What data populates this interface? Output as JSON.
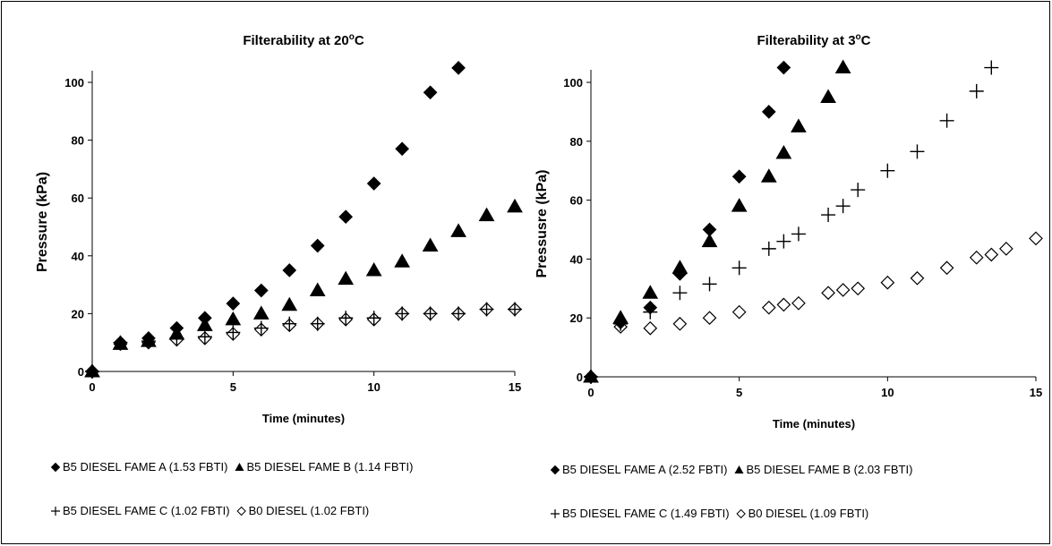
{
  "chart_data": [
    {
      "type": "scatter",
      "title": "Filterability at 20",
      "title_unit": "C",
      "xlabel": "Time  (minutes)",
      "ylabel": "Pressure  (kPa)",
      "xlim": [
        0,
        15
      ],
      "ylim": [
        0,
        110
      ],
      "xticks": [
        0,
        5,
        10,
        15
      ],
      "yticks": [
        0,
        20,
        40,
        60,
        80,
        100
      ],
      "grid": false,
      "legend_position": "bottom",
      "series": [
        {
          "name": "B5 DIESEL FAME A (1.53 FBTI)",
          "marker": "diamond-filled",
          "x": [
            0,
            1,
            2,
            3,
            4,
            5,
            6,
            7,
            8,
            9,
            10,
            11,
            12,
            13
          ],
          "y": [
            0,
            10,
            11.5,
            15,
            18.5,
            23.5,
            28,
            35,
            43.5,
            53.5,
            65,
            77,
            96.5,
            105
          ]
        },
        {
          "name": "B5 DIESEL FAME B (1.14 FBTI)",
          "marker": "triangle-filled",
          "x": [
            0,
            1,
            2,
            3,
            4,
            5,
            6,
            7,
            8,
            9,
            10,
            11,
            12,
            13,
            14,
            15
          ],
          "y": [
            0,
            9.5,
            10.5,
            13,
            16,
            18,
            20,
            23,
            28,
            32,
            35,
            38,
            43.5,
            48.5,
            54,
            57
          ]
        },
        {
          "name": "B5 DIESEL FAME C (1.02 FBTI)",
          "marker": "plus",
          "x": [
            0,
            1,
            2,
            3,
            4,
            5,
            6,
            7,
            8,
            9,
            10,
            11,
            12,
            13,
            14,
            15
          ],
          "y": [
            0,
            10,
            10.5,
            11.5,
            12,
            13.5,
            15,
            16.5,
            16.5,
            18.5,
            18.5,
            20,
            20,
            20,
            21.5,
            21.5
          ]
        },
        {
          "name": "B0 DIESEL (1.02 FBTI)",
          "marker": "diamond-open",
          "x": [
            0,
            1,
            2,
            3,
            4,
            5,
            6,
            7,
            8,
            9,
            10,
            11,
            12,
            13,
            14,
            15
          ],
          "y": [
            0,
            9.5,
            10,
            11,
            11.5,
            13,
            14.5,
            16,
            16.5,
            18,
            18,
            20,
            20,
            20,
            21.5,
            21.5
          ]
        }
      ],
      "legend_rows": [
        [
          0,
          1
        ],
        [
          2,
          3
        ]
      ]
    },
    {
      "type": "scatter",
      "title": "Filterability at 3",
      "title_unit": "C",
      "xlabel": "Time (minutes)",
      "ylabel": "Pressusre  (kPa)",
      "xlim": [
        0,
        15
      ],
      "ylim": [
        0,
        105
      ],
      "xticks": [
        0,
        5,
        10,
        15
      ],
      "yticks": [
        0,
        20,
        40,
        60,
        80,
        100
      ],
      "grid": false,
      "legend_position": "bottom",
      "series": [
        {
          "name": "B5 DIESEL FAME A (2.52 FBTI)",
          "marker": "diamond-filled",
          "x": [
            0,
            1,
            2,
            3,
            4,
            5,
            6,
            6.5
          ],
          "y": [
            0,
            18.5,
            23.5,
            35,
            50,
            68,
            90,
            105
          ]
        },
        {
          "name": "B5 DIESEL FAME B (2.03 FBTI)",
          "marker": "triangle-filled",
          "x": [
            0,
            1,
            2,
            3,
            4,
            5,
            6,
            6.5,
            7,
            8,
            8.5
          ],
          "y": [
            0,
            20,
            28.5,
            37,
            46,
            58,
            68,
            76,
            85,
            95,
            105
          ]
        },
        {
          "name": "B5 DIESEL FAME C (1.49 FBTI)",
          "marker": "plus",
          "x": [
            0,
            1,
            2,
            3,
            4,
            5,
            6,
            6.5,
            7,
            8,
            8.5,
            9,
            10,
            11,
            12,
            13,
            13.5
          ],
          "y": [
            0,
            18,
            22,
            28.5,
            31.5,
            37,
            43.5,
            46,
            48.5,
            55,
            58,
            63.5,
            70,
            76.5,
            87,
            97,
            105
          ]
        },
        {
          "name": "B0 DIESEL (1.09 FBTI)",
          "marker": "diamond-open",
          "x": [
            0,
            1,
            2,
            3,
            4,
            5,
            6,
            6.5,
            7,
            8,
            8.5,
            9,
            10,
            11,
            12,
            13,
            13.5,
            14,
            15
          ],
          "y": [
            0,
            17,
            16.5,
            18,
            20,
            22,
            23.5,
            24.5,
            25,
            28.5,
            29.5,
            30,
            32,
            33.5,
            37,
            40.5,
            41.5,
            43.5,
            47
          ]
        }
      ],
      "legend_rows": [
        [
          0,
          1
        ],
        [
          2,
          3
        ]
      ]
    }
  ]
}
